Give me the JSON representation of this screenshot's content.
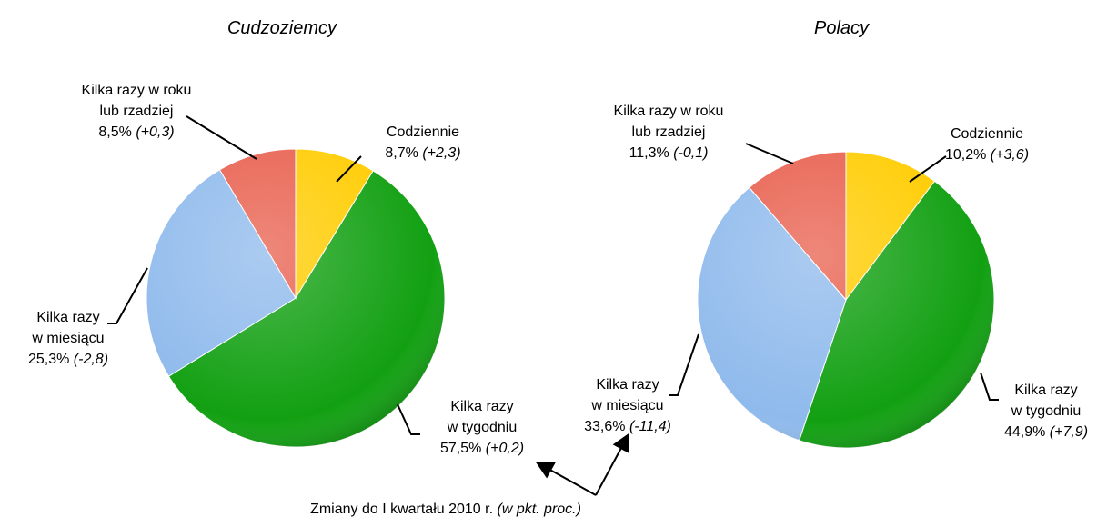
{
  "chart_data": [
    {
      "type": "pie",
      "title": "Cudzoziemcy",
      "categories": [
        [
          "Codziennie"
        ],
        [
          "Kilka razy",
          "w tygodniu"
        ],
        [
          "Kilka razy",
          "w miesiącu"
        ],
        [
          "Kilka razy w roku",
          "lub rzadziej"
        ]
      ],
      "values": [
        8.7,
        57.5,
        25.3,
        8.5
      ],
      "value_labels": [
        "8,7%",
        "57,5%",
        "25,3%",
        "8,5%"
      ],
      "changes": [
        2.3,
        0.2,
        -2.8,
        0.3
      ],
      "change_labels": [
        "(+2,3)",
        "(+0,2)",
        "(-2,8)",
        "(+0,3)"
      ],
      "colors": [
        "#ffcc00",
        "#12a012",
        "#8fbaec",
        "#e8604e"
      ]
    },
    {
      "type": "pie",
      "title": "Polacy",
      "categories": [
        [
          "Codziennie"
        ],
        [
          "Kilka razy",
          "w tygodniu"
        ],
        [
          "Kilka razy",
          "w miesiącu"
        ],
        [
          "Kilka razy w roku",
          "lub rzadziej"
        ]
      ],
      "values": [
        10.2,
        44.9,
        33.6,
        11.3
      ],
      "value_labels": [
        "10,2%",
        "44,9%",
        "33,6%",
        "11,3%"
      ],
      "changes": [
        3.6,
        7.9,
        -11.4,
        -0.1
      ],
      "change_labels": [
        "(+3,6)",
        "(+7,9)",
        "(-11,4)",
        "(-0,1)"
      ],
      "colors": [
        "#ffcc00",
        "#12a012",
        "#8fbaec",
        "#e8604e"
      ]
    }
  ],
  "annotation": {
    "text": "Zmiany do I kwartału 2010 r.",
    "note": "(w pkt. proc.)"
  }
}
